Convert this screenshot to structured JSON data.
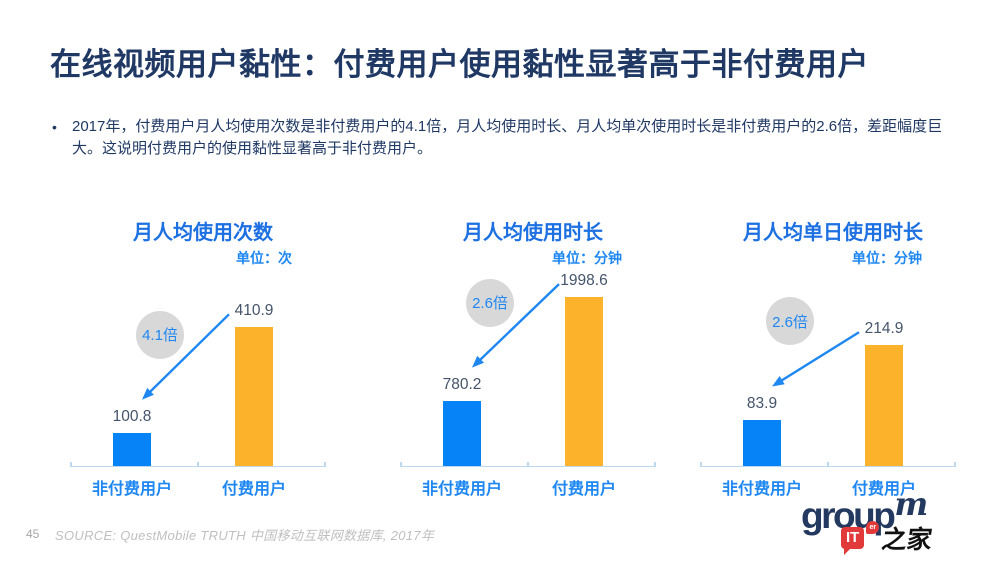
{
  "slide": {
    "title": "在线视频用户黏性：付费用户使用黏性显著高于非付费用户",
    "bullet_marker": "•",
    "bullet": "2017年，付费用户月人均使用次数是非付费用户的4.1倍，月人均使用时长、月人均单次使用时长是非付费用户的2.6倍，差距幅度巨大。这说明付费用户的使用黏性显著高于非付费用户。",
    "page_number": "45",
    "source": "SOURCE: QuestMobile TRUTH 中国移动互联网数据库, 2017年",
    "logo": {
      "group_text": "group",
      "m_text": "m",
      "watermark_it": "IT",
      "watermark_er": "er",
      "watermark_home": "之家"
    }
  },
  "colors": {
    "title_navy": "#1F3864",
    "body_navy": "#1F3864",
    "chart_title_blue": "#1C70E2",
    "bright_blue": "#1E87F2",
    "bar_blue": "#0583F7",
    "bar_orange": "#FDB22C",
    "value_label": "#44546A",
    "circle_gray": "#D8D8D8",
    "axis_blue": "#BDD7EE",
    "source_gray": "#BFBFBF",
    "page_number_gray": "#A6A6A6",
    "logo_navy": "#23395F",
    "watermark_red": "#E23A3A"
  },
  "chart_data": [
    {
      "type": "bar",
      "title": "月人均使用次数",
      "unit_label": "单位：次",
      "categories": [
        "非付费用户",
        "付费用户"
      ],
      "values": [
        100.8,
        410.9
      ],
      "value_labels": [
        "100.8",
        "410.9"
      ],
      "multiplier_badge": "4.1倍",
      "bar_colors": [
        "#0583F7",
        "#FDB22C"
      ],
      "ylim": [
        0,
        500
      ],
      "grid": false,
      "legend": false
    },
    {
      "type": "bar",
      "title": "月人均使用时长",
      "unit_label": "单位：分钟",
      "categories": [
        "非付费用户",
        "付费用户"
      ],
      "values": [
        780.2,
        1998.6
      ],
      "value_labels": [
        "780.2",
        "1998.6"
      ],
      "multiplier_badge": "2.6倍",
      "bar_colors": [
        "#0583F7",
        "#FDB22C"
      ],
      "ylim": [
        0,
        2000
      ],
      "grid": false,
      "legend": false
    },
    {
      "type": "bar",
      "title": "月人均单日使用时长",
      "unit_label": "单位：分钟",
      "categories": [
        "非付费用户",
        "付费用户"
      ],
      "values": [
        83.9,
        214.9
      ],
      "value_labels": [
        "83.9",
        "214.9"
      ],
      "multiplier_badge": "2.6倍",
      "bar_colors": [
        "#0583F7",
        "#FDB22C"
      ],
      "ylim": [
        0,
        300
      ],
      "grid": false,
      "legend": false
    }
  ]
}
